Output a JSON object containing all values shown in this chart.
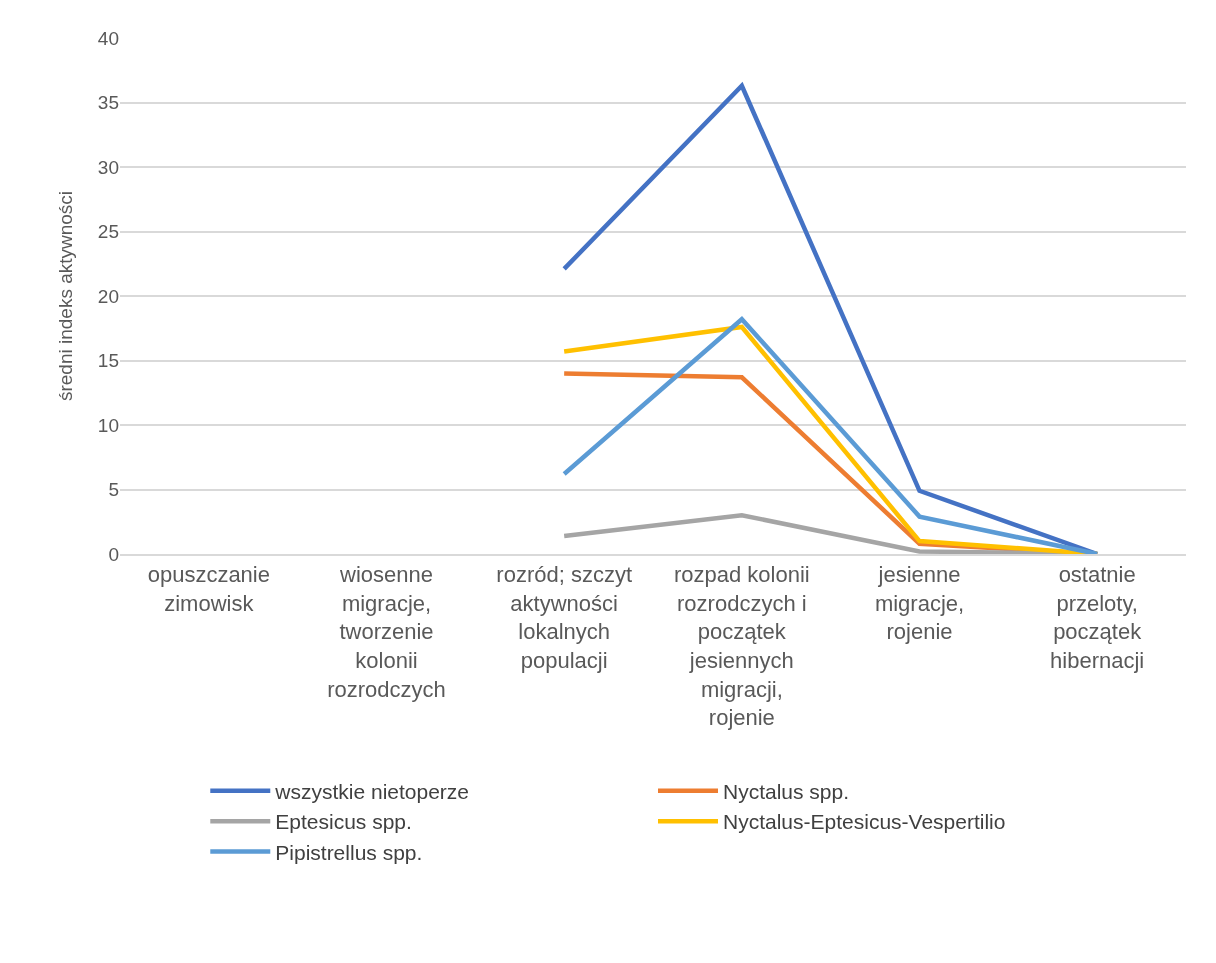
{
  "chart_data": {
    "type": "line",
    "ylabel": "średni indeks aktywności",
    "categories": [
      "opuszczanie zimowisk",
      "wiosenne migracje, tworzenie kolonii rozrodczych",
      "rozród; szczyt aktywności lokalnych populacji",
      "rozpad kolonii rozrodczych i początek jesiennych migracji, rojenie",
      "jesienne migracje, rojenie",
      "ostatnie przeloty, początek hibernacji"
    ],
    "series": [
      {
        "name": "wszystkie nietoperze",
        "color": "#4472c4",
        "values": [
          null,
          null,
          22.1,
          36.3,
          4.9,
          0
        ]
      },
      {
        "name": "Nyctalus spp.",
        "color": "#ed7d31",
        "values": [
          null,
          null,
          14.0,
          13.7,
          0.8,
          0
        ]
      },
      {
        "name": "Eptesicus spp.",
        "color": "#a5a5a5",
        "values": [
          null,
          null,
          1.4,
          3.0,
          0.2,
          0
        ]
      },
      {
        "name": "Nyctalus-Eptesicus-Vespertilio",
        "color": "#ffc000",
        "values": [
          null,
          null,
          15.7,
          17.6,
          1.0,
          0
        ]
      },
      {
        "name": "Pipistrellus spp.",
        "color": "#5b9bd5",
        "values": [
          null,
          null,
          6.2,
          18.2,
          2.9,
          0
        ]
      }
    ],
    "ylim": [
      0,
      40
    ],
    "yticks": [
      0,
      5,
      10,
      15,
      20,
      25,
      30,
      35,
      40
    ],
    "grid": "y",
    "legend": "bottom",
    "marker": "none",
    "line_style": "solid"
  }
}
